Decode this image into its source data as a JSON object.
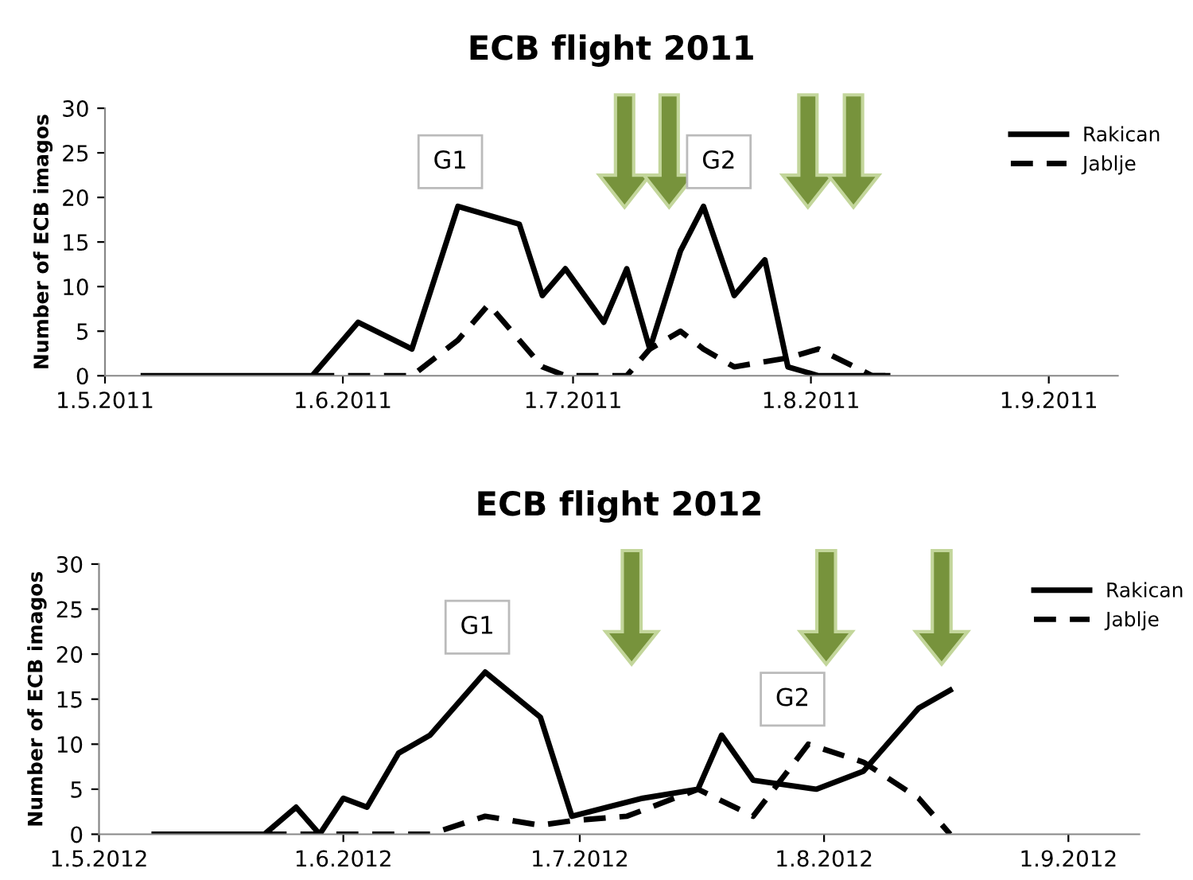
{
  "chart_data": [
    {
      "type": "line",
      "title": "ECB flight 2011",
      "ylabel": "Number of ECB imagos",
      "legend": "top right",
      "grid": false,
      "marker": "none",
      "xlim": [
        "2011-05-01",
        "2011-09-10"
      ],
      "ylim": [
        0,
        30
      ],
      "yticks": [
        0,
        5,
        10,
        15,
        20,
        25,
        30
      ],
      "xticks": [
        {
          "value": "2011-05-01",
          "label": "1.5.2011"
        },
        {
          "value": "2011-06-01",
          "label": "1.6.2011"
        },
        {
          "value": "2011-07-01",
          "label": "1.7.2011"
        },
        {
          "value": "2011-08-01",
          "label": "1.8.2011"
        },
        {
          "value": "2011-09-01",
          "label": "1.9.2011"
        }
      ],
      "annotations": [
        {
          "text": "G1",
          "x": "2011-06-15",
          "y": 24
        },
        {
          "text": "G2",
          "x": "2011-07-20",
          "y": 24
        }
      ],
      "series": [
        {
          "name": "Rakican",
          "color": "#000000",
          "line_style": "solid",
          "x": [
            "2011-05-06",
            "2011-05-28",
            "2011-06-03",
            "2011-06-10",
            "2011-06-16",
            "2011-06-24",
            "2011-06-27",
            "2011-06-30",
            "2011-07-05",
            "2011-07-08",
            "2011-07-11",
            "2011-07-15",
            "2011-07-18",
            "2011-07-22",
            "2011-07-26",
            "2011-07-29",
            "2011-08-02",
            "2011-08-11"
          ],
          "values": [
            0,
            0,
            6,
            3,
            19,
            17,
            9,
            12,
            6,
            12,
            3,
            14,
            19,
            9,
            13,
            1,
            0,
            0
          ]
        },
        {
          "name": "Jablje",
          "color": "#000000",
          "line_style": "dashed",
          "x": [
            "2011-05-28",
            "2011-06-10",
            "2011-06-16",
            "2011-06-20",
            "2011-06-27",
            "2011-06-30",
            "2011-07-08",
            "2011-07-11",
            "2011-07-15",
            "2011-07-18",
            "2011-07-22",
            "2011-07-29",
            "2011-08-02",
            "2011-08-09",
            "2011-08-11"
          ],
          "values": [
            0,
            0,
            4,
            8,
            1,
            0,
            0,
            3,
            5,
            3,
            1,
            2,
            3,
            0,
            0
          ]
        }
      ]
    },
    {
      "type": "line",
      "title": "ECB flight 2012",
      "ylabel": "Number of ECB imagos",
      "legend": "top right",
      "grid": false,
      "marker": "none",
      "xlim": [
        "2012-05-01",
        "2012-09-10"
      ],
      "ylim": [
        0,
        30
      ],
      "yticks": [
        0,
        5,
        10,
        15,
        20,
        25,
        30
      ],
      "xticks": [
        {
          "value": "2012-05-01",
          "label": "1.5.2012"
        },
        {
          "value": "2012-06-01",
          "label": "1.6.2012"
        },
        {
          "value": "2012-07-01",
          "label": "1.7.2012"
        },
        {
          "value": "2012-08-01",
          "label": "1.8.2012"
        },
        {
          "value": "2012-09-01",
          "label": "1.9.2012"
        }
      ],
      "annotations": [
        {
          "text": "G1",
          "x": "2012-06-18",
          "y": 23
        },
        {
          "text": "G2",
          "x": "2012-07-28",
          "y": 15
        }
      ],
      "series": [
        {
          "name": "Rakican",
          "color": "#000000",
          "line_style": "solid",
          "x": [
            "2012-05-08",
            "2012-05-22",
            "2012-05-26",
            "2012-05-29",
            "2012-06-01",
            "2012-06-04",
            "2012-06-08",
            "2012-06-12",
            "2012-06-19",
            "2012-06-26",
            "2012-06-30",
            "2012-07-09",
            "2012-07-16",
            "2012-07-19",
            "2012-07-23",
            "2012-07-31",
            "2012-08-06",
            "2012-08-13",
            "2012-08-17"
          ],
          "values": [
            0,
            0,
            3,
            0,
            4,
            3,
            9,
            11,
            18,
            13,
            2,
            4,
            5,
            11,
            6,
            5,
            7,
            14,
            16
          ]
        },
        {
          "name": "Jablje",
          "color": "#000000",
          "line_style": "dashed",
          "x": [
            "2012-05-22",
            "2012-06-12",
            "2012-06-19",
            "2012-06-26",
            "2012-06-30",
            "2012-07-07",
            "2012-07-16",
            "2012-07-23",
            "2012-07-30",
            "2012-08-06",
            "2012-08-13",
            "2012-08-17"
          ],
          "values": [
            0,
            0,
            2,
            1,
            1.5,
            2,
            5,
            2,
            10,
            8,
            4,
            0
          ]
        }
      ]
    }
  ]
}
